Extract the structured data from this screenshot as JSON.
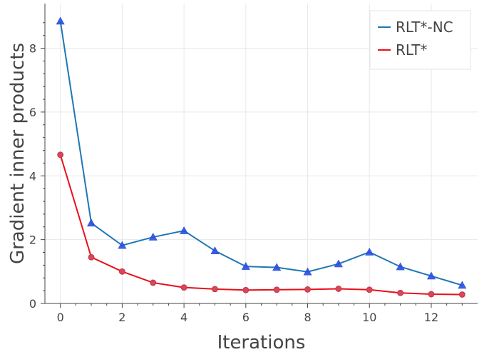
{
  "chart_data": {
    "type": "line",
    "xlabel": "Iterations",
    "ylabel": "Gradient inner products",
    "xlim": [
      -0.5,
      13.5
    ],
    "ylim": [
      0,
      9.4
    ],
    "x_ticks": [
      0,
      2,
      4,
      6,
      8,
      10,
      12
    ],
    "y_ticks": [
      0,
      2,
      4,
      6,
      8
    ],
    "x_tick_labels": [
      "0",
      "2",
      "4",
      "6",
      "8",
      "10",
      "12"
    ],
    "y_tick_labels": [
      "0",
      "2",
      "4",
      "6",
      "8"
    ],
    "grid": true,
    "legend_position": "top-right",
    "x": [
      0,
      1,
      2,
      3,
      4,
      5,
      6,
      7,
      8,
      9,
      10,
      11,
      12,
      13
    ],
    "series": [
      {
        "name": "RLT*-NC",
        "color": "#1f77b4",
        "marker": "triangle",
        "marker_color": "#2a4ee0",
        "values": [
          8.85,
          2.52,
          1.82,
          2.08,
          2.28,
          1.65,
          1.16,
          1.13,
          0.99,
          1.24,
          1.61,
          1.15,
          0.86,
          0.57
        ]
      },
      {
        "name": "RLT*",
        "color": "#e8101a",
        "marker": "circle",
        "marker_color": "#d9455a",
        "values": [
          4.66,
          1.45,
          1.0,
          0.65,
          0.5,
          0.45,
          0.42,
          0.43,
          0.44,
          0.46,
          0.43,
          0.33,
          0.29,
          0.28
        ]
      }
    ]
  }
}
